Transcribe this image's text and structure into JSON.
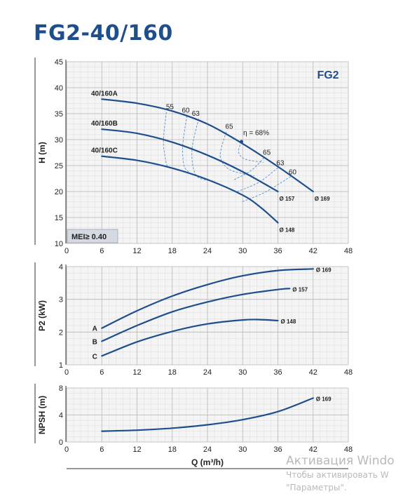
{
  "title": "FG2-40/160",
  "colors": {
    "curve": "#1f4e8c",
    "efficiency": "#5a8fcf",
    "grid": "#c9c9c9",
    "plot_bg": "#f4f4f4",
    "text": "#222222",
    "title": "#1f4e8c"
  },
  "watermark": {
    "line1": "Активация Windo",
    "line2": "Чтобы активировать W",
    "line3": "\"Параметры\"."
  },
  "chart_data": [
    {
      "id": "head",
      "type": "line",
      "ylabel": "H (m)",
      "xlim": [
        0,
        48
      ],
      "ylim": [
        10,
        45
      ],
      "xticks": [
        0,
        6,
        12,
        18,
        24,
        30,
        36,
        42,
        48
      ],
      "yticks": [
        10,
        15,
        20,
        25,
        30,
        35,
        40,
        45
      ],
      "badge": "FG2",
      "mei_label": "MEI≥ 0.40",
      "series": [
        {
          "name": "40/160A",
          "end_label": "Ø 169",
          "x": [
            6,
            12,
            18,
            24,
            30,
            36,
            42
          ],
          "y": [
            37.8,
            37.0,
            35.5,
            33.0,
            29.2,
            24.8,
            20.0
          ]
        },
        {
          "name": "40/160B",
          "end_label": "Ø 157",
          "x": [
            6,
            12,
            18,
            24,
            30,
            36
          ],
          "y": [
            32.0,
            31.2,
            29.5,
            27.0,
            23.8,
            20.0
          ]
        },
        {
          "name": "40/160C",
          "end_label": "Ø 148",
          "x": [
            6,
            12,
            18,
            24,
            30,
            33,
            36
          ],
          "y": [
            26.8,
            26.0,
            24.5,
            22.3,
            19.3,
            17.0,
            14.0
          ]
        }
      ],
      "efficiency": [
        {
          "label": "55",
          "x": [
            17.0,
            16.5,
            16.8,
            17.2
          ],
          "y": [
            35.3,
            30.0,
            26.5,
            24.7
          ]
        },
        {
          "label": "60",
          "x": [
            20.5,
            19.8,
            20.0,
            20.8
          ],
          "y": [
            34.6,
            29.0,
            25.0,
            23.8
          ]
        },
        {
          "label": "63",
          "x": [
            22.5,
            21.4,
            21.6,
            22.6,
            25.2
          ],
          "y": [
            34.0,
            28.5,
            24.5,
            22.6,
            22.0
          ]
        },
        {
          "label": "65",
          "x": [
            27.2,
            26.2,
            26.6,
            28.2,
            32.0
          ],
          "y": [
            31.5,
            27.5,
            25.5,
            24.0,
            23.0
          ]
        },
        {
          "label": "η = 68%",
          "x": [
            29.8,
            29.3,
            30.3,
            33.5
          ],
          "y": [
            29.6,
            27.7,
            26.3,
            25.6
          ]
        },
        {
          "label": "65",
          "x": [
            33.6,
            31.5,
            28.4
          ],
          "y": [
            26.5,
            24.1,
            22.2
          ]
        },
        {
          "label": "63",
          "x": [
            36.0,
            32.8,
            28.9
          ],
          "y": [
            24.6,
            21.8,
            19.9
          ]
        },
        {
          "label": "60",
          "x": [
            38.2,
            33.7,
            29.8
          ],
          "y": [
            22.9,
            19.8,
            18.0
          ]
        }
      ],
      "efficiency_labels": [
        {
          "text": "55",
          "x": 17.6,
          "y": 35.9
        },
        {
          "text": "60",
          "x": 20.3,
          "y": 35.2
        },
        {
          "text": "63",
          "x": 22.0,
          "y": 34.6
        },
        {
          "text": "65",
          "x": 27.7,
          "y": 32.1
        },
        {
          "text": "η = 68%",
          "x": 32.3,
          "y": 30.9
        },
        {
          "text": "65",
          "x": 34.1,
          "y": 27.1
        },
        {
          "text": "63",
          "x": 36.4,
          "y": 25.1
        },
        {
          "text": "60",
          "x": 38.5,
          "y": 23.3
        }
      ]
    },
    {
      "id": "power",
      "type": "line",
      "ylabel": "P2 (kW)",
      "xlim": [
        0,
        48
      ],
      "ylim": [
        1,
        4
      ],
      "xticks": [
        0,
        6,
        12,
        18,
        24,
        30,
        36,
        42,
        48
      ],
      "yticks": [
        1,
        2,
        3,
        4
      ],
      "series": [
        {
          "name": "A",
          "end_label": "Ø 169",
          "x": [
            6,
            12,
            18,
            24,
            30,
            36,
            42
          ],
          "y": [
            2.12,
            2.65,
            3.1,
            3.45,
            3.72,
            3.88,
            3.93
          ]
        },
        {
          "name": "B",
          "end_label": "Ø 157",
          "x": [
            6,
            12,
            18,
            24,
            30,
            36,
            38
          ],
          "y": [
            1.72,
            2.2,
            2.62,
            2.92,
            3.15,
            3.3,
            3.33
          ]
        },
        {
          "name": "C",
          "end_label": "Ø 148",
          "x": [
            6,
            12,
            18,
            24,
            30,
            33,
            36
          ],
          "y": [
            1.27,
            1.7,
            2.02,
            2.25,
            2.37,
            2.38,
            2.35
          ]
        }
      ]
    },
    {
      "id": "npsh",
      "type": "line",
      "ylabel": "NPSH (m)",
      "xlabel": "Q (m³/h)",
      "xlim": [
        0,
        48
      ],
      "ylim": [
        0,
        8
      ],
      "xticks": [
        0,
        6,
        12,
        18,
        24,
        30,
        36,
        42,
        48
      ],
      "yticks": [
        0,
        4,
        8
      ],
      "series": [
        {
          "name": "",
          "end_label": "Ø 169",
          "x": [
            6,
            12,
            18,
            24,
            30,
            36,
            42
          ],
          "y": [
            1.6,
            1.75,
            2.05,
            2.55,
            3.3,
            4.5,
            6.5
          ]
        }
      ]
    }
  ]
}
